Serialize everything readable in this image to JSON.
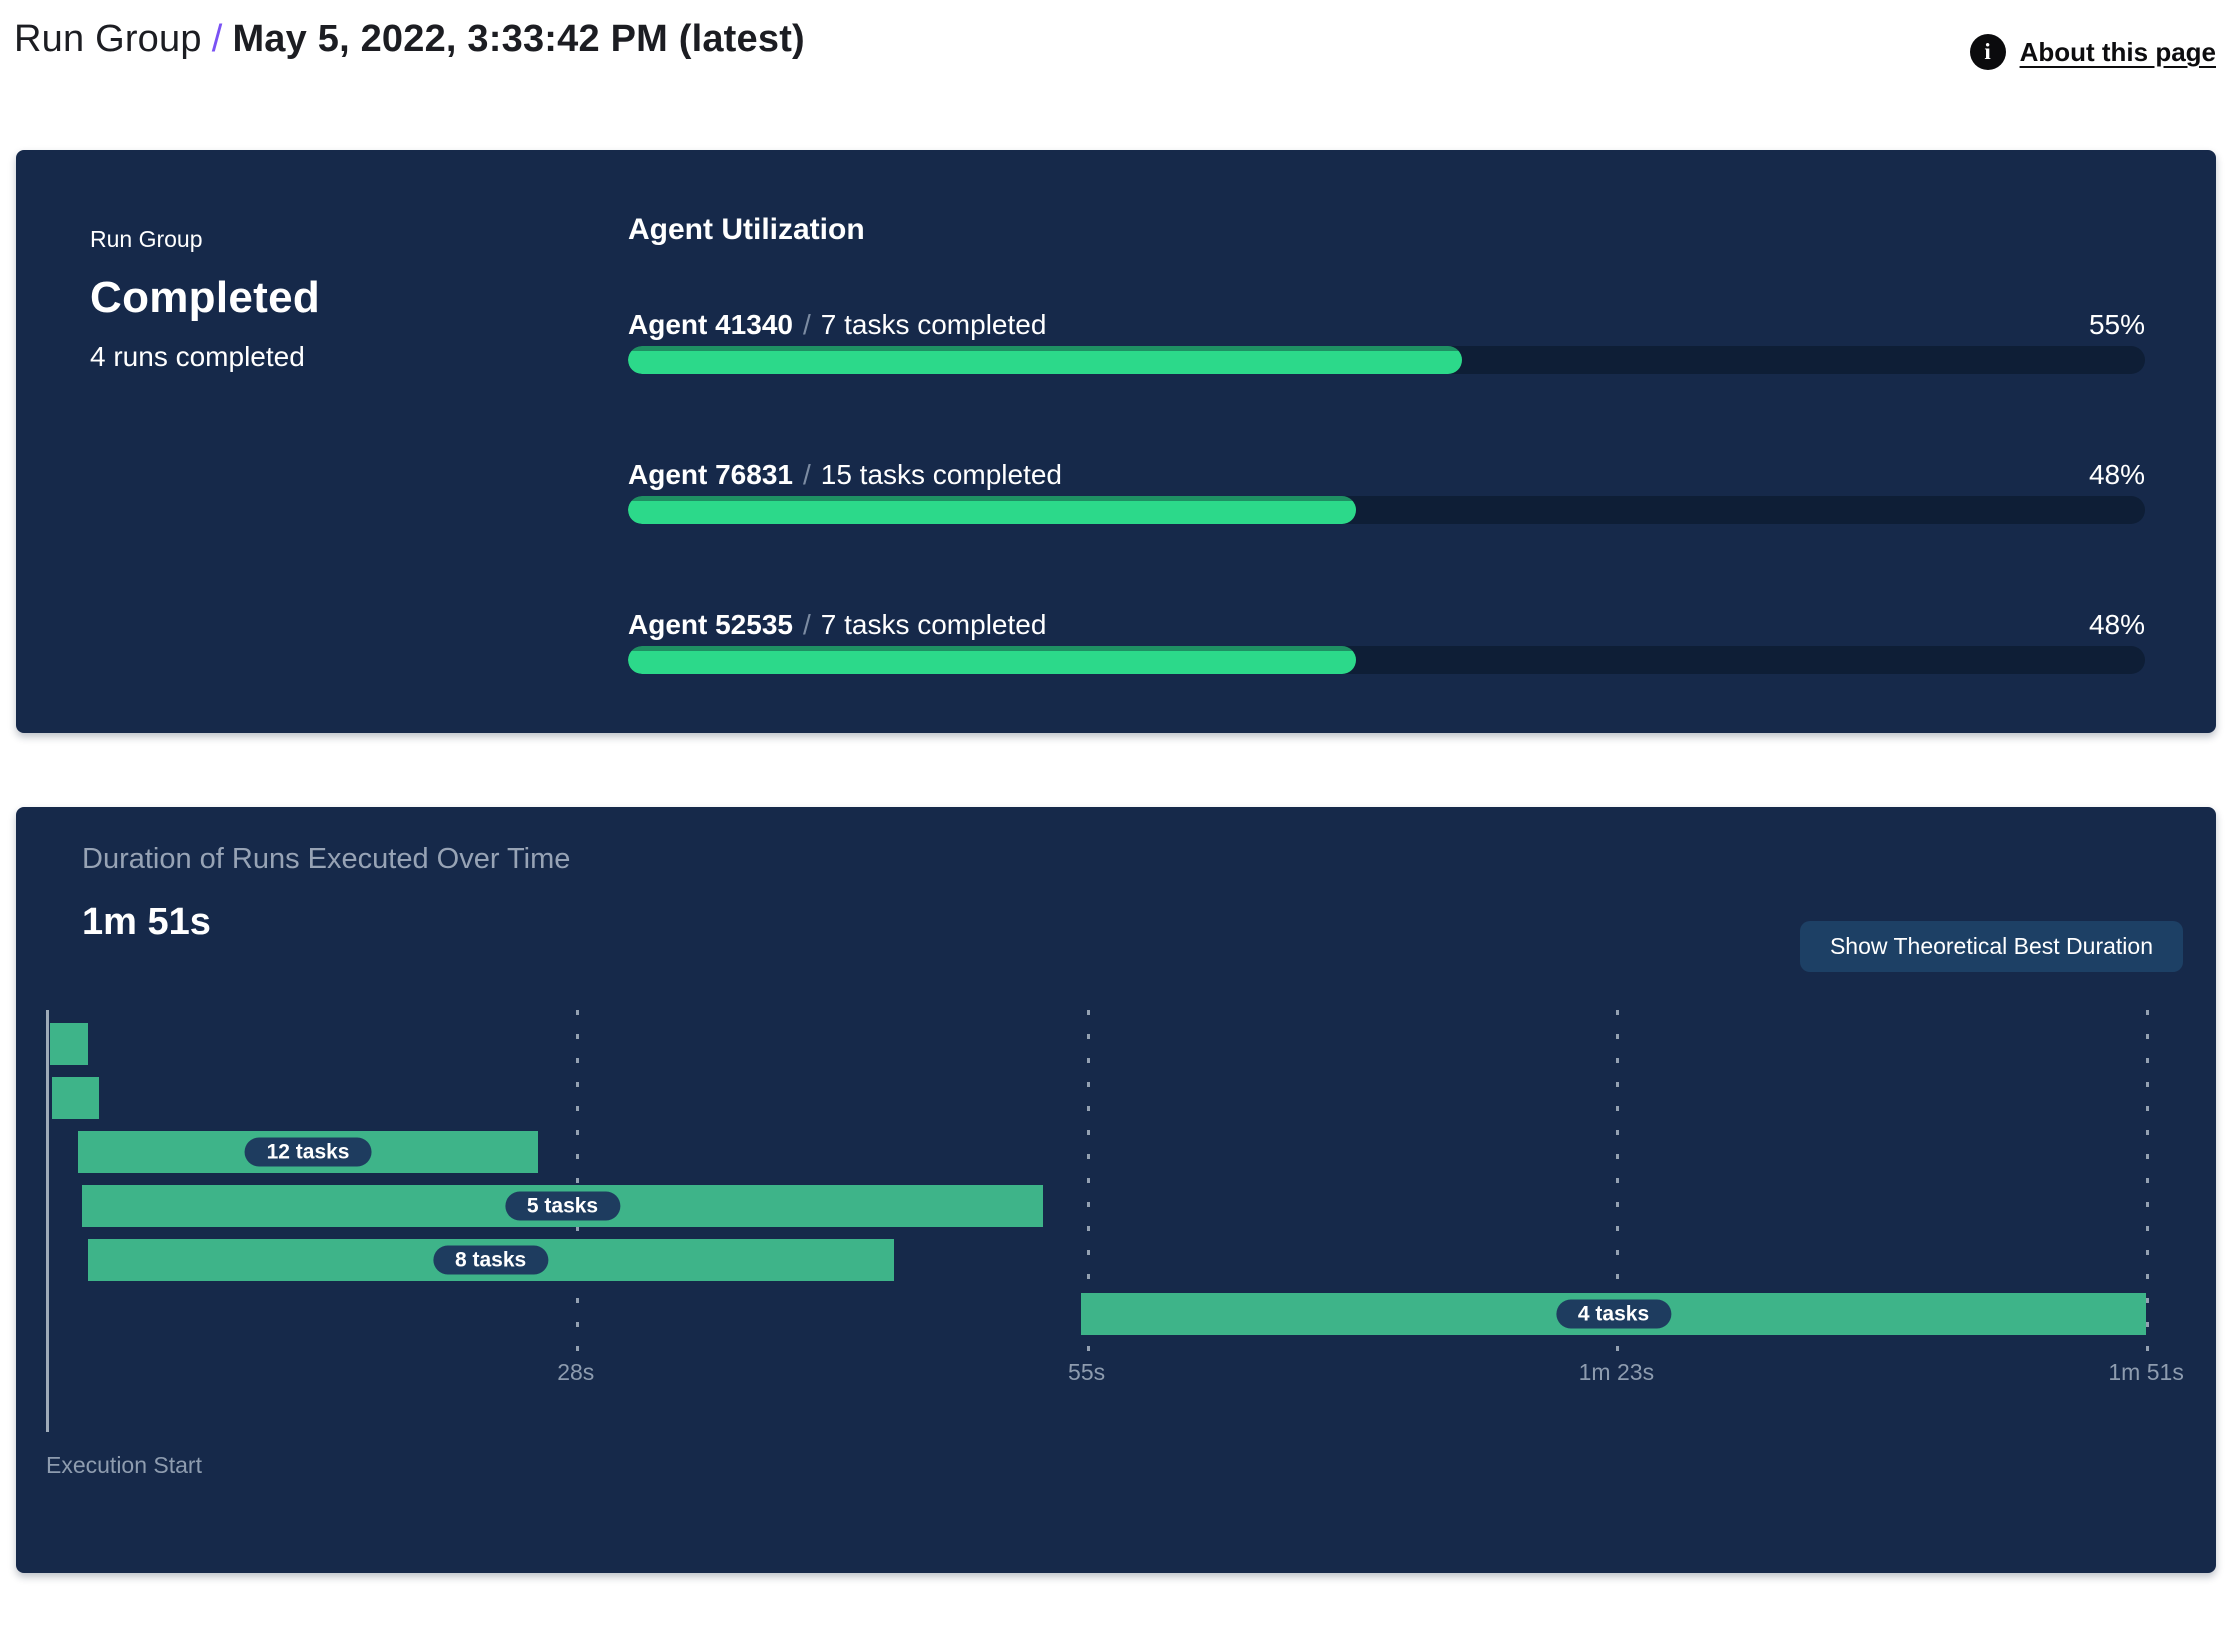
{
  "header": {
    "breadcrumb_root": "Run Group",
    "breadcrumb_separator": "/",
    "title": "May 5, 2022, 3:33:42 PM (latest)",
    "info_icon_glyph": "i",
    "about_link": "About this page"
  },
  "run_group_panel": {
    "label": "Run Group",
    "status": "Completed",
    "runs_summary": "4 runs completed",
    "utilization": {
      "title": "Agent Utilization",
      "separator": "/",
      "agents": [
        {
          "id": "Agent 41340",
          "tasks": "7 tasks completed",
          "percent": 55,
          "percent_label": "55%"
        },
        {
          "id": "Agent 76831",
          "tasks": "15 tasks completed",
          "percent": 48,
          "percent_label": "48%"
        },
        {
          "id": "Agent 52535",
          "tasks": "7 tasks completed",
          "percent": 48,
          "percent_label": "48%"
        }
      ]
    }
  },
  "duration_panel": {
    "title": "Duration of Runs Executed Over Time",
    "total_duration": "1m 51s",
    "button_label": "Show Theoretical Best Duration",
    "axis_label": "Execution Start"
  },
  "chart_data": {
    "type": "gantt",
    "title": "Duration of Runs Executed Over Time",
    "total_duration_label": "1m 51s",
    "x_unit": "seconds",
    "x_range_s": [
      0,
      111
    ],
    "grid": "vertical-dashed",
    "legend_position": "none",
    "axis_label": "Execution Start",
    "ticks": [
      {
        "s": 28,
        "label": "28s"
      },
      {
        "s": 55,
        "label": "55s"
      },
      {
        "s": 83,
        "label": "1m 23s"
      },
      {
        "s": 111,
        "label": "1m 51s"
      }
    ],
    "runs": [
      {
        "row": 0,
        "start_s": 0.2,
        "end_s": 2.2,
        "label": ""
      },
      {
        "row": 1,
        "start_s": 0.3,
        "end_s": 2.8,
        "label": ""
      },
      {
        "row": 2,
        "start_s": 1.7,
        "end_s": 26.0,
        "label": "12 tasks"
      },
      {
        "row": 3,
        "start_s": 1.9,
        "end_s": 52.7,
        "label": "5 tasks"
      },
      {
        "row": 4,
        "start_s": 2.2,
        "end_s": 44.8,
        "label": "8 tasks"
      },
      {
        "row": 5,
        "start_s": 54.7,
        "end_s": 111.0,
        "label": "4 tasks"
      }
    ]
  },
  "colors": {
    "accent_purple": "#7a52f4",
    "panel_navy": "#16294a",
    "track_navy": "#0e1e36",
    "progress_green": "#2cd98a",
    "progress_green_edge": "#1f9063",
    "gantt_green": "#3eb489",
    "pill_navy": "#1e3c5f",
    "button_navy": "#1d4065",
    "muted_text": "#97a3b5"
  }
}
